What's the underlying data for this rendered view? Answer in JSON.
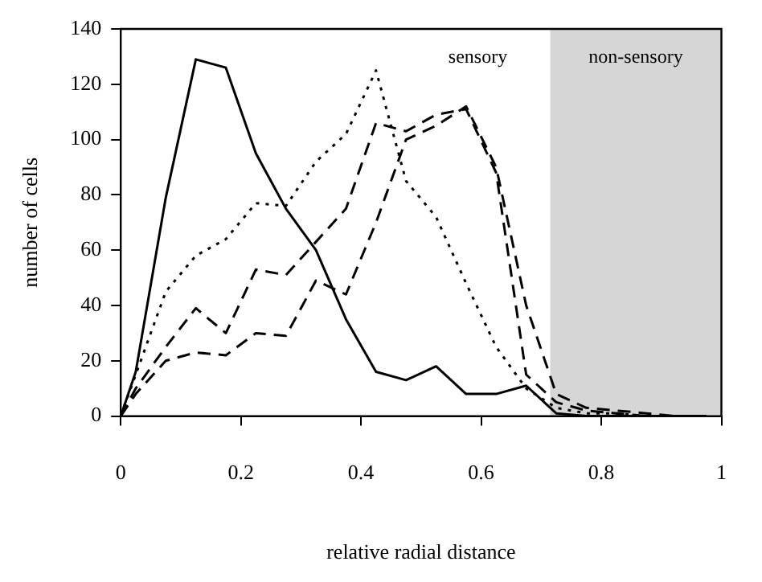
{
  "chart_data": {
    "type": "line",
    "xlabel": "relative radial distance",
    "ylabel": "number of cells",
    "x": [
      0,
      0.025,
      0.075,
      0.125,
      0.175,
      0.225,
      0.275,
      0.325,
      0.375,
      0.425,
      0.475,
      0.525,
      0.575,
      0.625,
      0.675,
      0.725,
      0.775,
      0.825,
      0.875,
      0.925,
      0.975
    ],
    "series": [
      {
        "color": "#000000",
        "line_style": "solid",
        "values": [
          0,
          16,
          79,
          129,
          126,
          95,
          75,
          60,
          35,
          16,
          13,
          18,
          8,
          8,
          11,
          1,
          0,
          0,
          0,
          0,
          0
        ]
      },
      {
        "color": "#000000",
        "line_style": "dotted",
        "values": [
          0,
          15,
          45,
          58,
          64,
          77,
          76,
          92,
          102,
          125,
          85,
          72,
          48,
          25,
          10,
          3,
          1,
          1,
          0,
          0,
          0
        ]
      },
      {
        "color": "#000000",
        "line_style": "dashed",
        "values": [
          0,
          10,
          25,
          39,
          30,
          53,
          51,
          63,
          75,
          106,
          103,
          109,
          111,
          88,
          15,
          5,
          2,
          1,
          0,
          0,
          0
        ]
      },
      {
        "color": "#000000",
        "line_style": "dashed",
        "values": [
          0,
          8,
          20,
          23,
          22,
          30,
          29,
          49,
          44,
          70,
          100,
          105,
          112,
          90,
          40,
          8,
          3,
          2,
          1,
          0,
          0
        ]
      }
    ],
    "xlim": [
      0,
      1
    ],
    "xticks": [
      0,
      0.2,
      0.4,
      0.6,
      0.8,
      1
    ],
    "ylim": [
      0,
      140
    ],
    "yticks": [
      0,
      20,
      40,
      60,
      80,
      100,
      120,
      140
    ],
    "grid": false,
    "legend": false,
    "marker": "none",
    "bands": [
      {
        "axis": "x",
        "from": 0.715,
        "to": 1,
        "label": "non-sensory",
        "color": "#d6d6d6"
      }
    ],
    "annotations": [
      "sensory"
    ]
  }
}
